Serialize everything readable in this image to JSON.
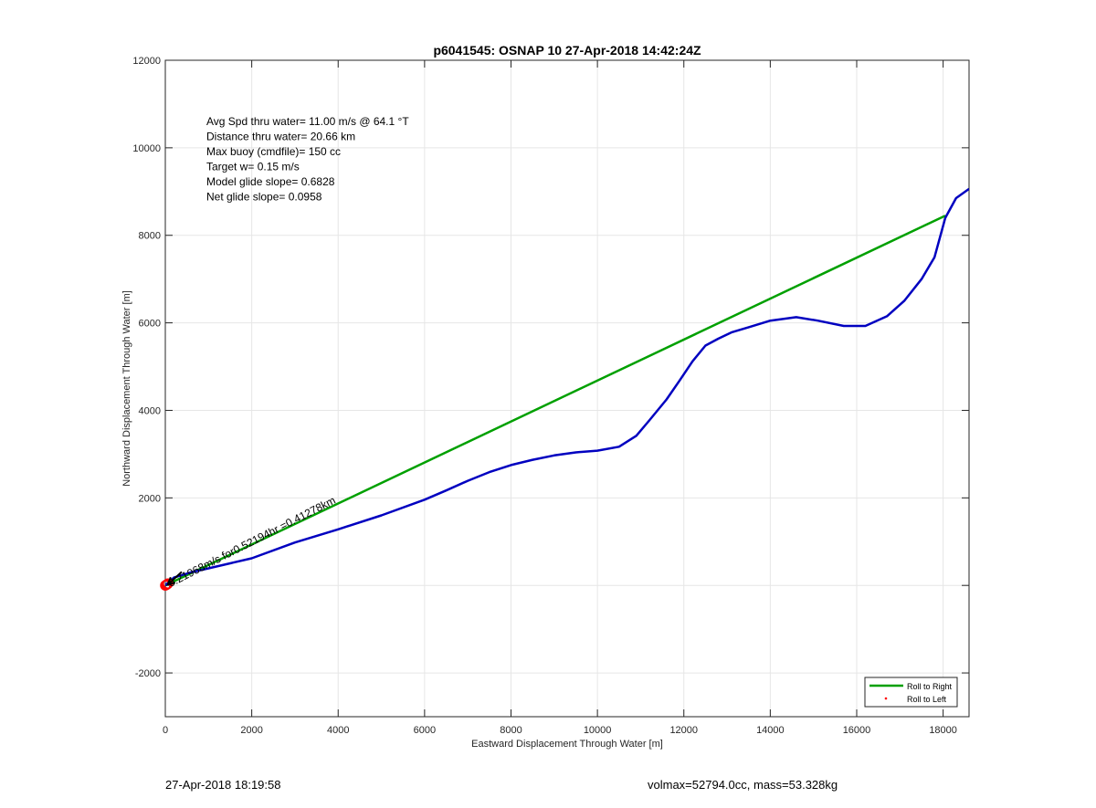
{
  "chart_data": {
    "type": "line",
    "title": "p6041545: OSNAP 10 27-Apr-2018 14:42:24Z",
    "xlabel": "Eastward Displacement Through Water [m]",
    "ylabel": "Northward Displacement Through Water [m]",
    "xlim": [
      0,
      18600
    ],
    "ylim": [
      -3000,
      12000
    ],
    "xticks": [
      0,
      2000,
      4000,
      6000,
      8000,
      10000,
      12000,
      14000,
      16000,
      18000
    ],
    "yticks": [
      -2000,
      0,
      2000,
      4000,
      6000,
      8000,
      10000,
      12000
    ],
    "ytick_labels": [
      "-2000",
      "",
      "2000",
      "4000",
      "6000",
      "8000",
      "10000",
      "12000"
    ],
    "grid": true,
    "legend_position": "bottom-right",
    "series": [
      {
        "name": "Roll to Right",
        "color": "#00a000",
        "x": [
          0,
          18050
        ],
        "y": [
          0,
          8450
        ]
      },
      {
        "name": "",
        "color": "#0000c0",
        "x": [
          0,
          200,
          600,
          1000,
          2000,
          3000,
          4000,
          5000,
          6000,
          6500,
          7000,
          7500,
          8000,
          8500,
          9000,
          9500,
          10000,
          10500,
          10900,
          11200,
          11600,
          11900,
          12200,
          12500,
          12800,
          13100,
          13500,
          14000,
          14600,
          15100,
          15700,
          16200,
          16700,
          17100,
          17500,
          17800,
          18050,
          18300,
          18600
        ],
        "y": [
          0,
          180,
          300,
          390,
          620,
          980,
          1280,
          1600,
          1960,
          2170,
          2390,
          2590,
          2750,
          2870,
          2970,
          3040,
          3080,
          3170,
          3420,
          3770,
          4250,
          4680,
          5120,
          5480,
          5640,
          5780,
          5900,
          6050,
          6130,
          6050,
          5930,
          5930,
          6150,
          6500,
          7000,
          7500,
          8400,
          8850,
          9060
        ]
      }
    ],
    "markers": [
      {
        "name": "Roll to Left",
        "color": "#ff0000",
        "x": [
          0,
          20,
          40,
          60
        ],
        "y": [
          0,
          10,
          25,
          40
        ]
      }
    ],
    "annotations": {
      "info_lines": [
        "Avg Spd thru water= 11.00 m/s @  64.1 °T",
        "Distance thru water= 20.66 km",
        "Max buoy (cmdfile)= 150 cc",
        "Target w= 0.15 m/s",
        "Model glide slope= 0.6828",
        "Net glide slope= 0.0958"
      ],
      "arrow_label": "0.21968m/s for0.52194hr =0.41278km"
    }
  },
  "footer": {
    "left": "27-Apr-2018 18:19:58",
    "right": "volmax=52794.0cc, mass=53.328kg"
  }
}
